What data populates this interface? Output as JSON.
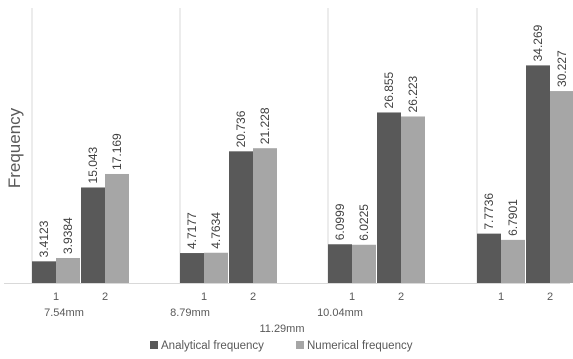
{
  "chart_data": {
    "type": "bar",
    "title": "",
    "xlabel": "",
    "ylabel": "Frequency",
    "ylim": [
      0,
      40
    ],
    "grid": "vertical separator lines only",
    "legend_position": "bottom",
    "groups": [
      {
        "label": "7.54mm",
        "categories": [
          "1",
          "2"
        ]
      },
      {
        "label": "8.79mm",
        "categories": [
          "1",
          "2"
        ]
      },
      {
        "label": "10.04mm",
        "categories": [
          "1",
          "2"
        ]
      },
      {
        "label": "11.29mm",
        "categories": [
          "1",
          "2"
        ]
      }
    ],
    "series": [
      {
        "name": "Analytical frequency",
        "color": "#595959",
        "values": [
          3.4123,
          15.043,
          4.7177,
          20.736,
          6.0999,
          26.855,
          7.7736,
          34.269
        ]
      },
      {
        "name": "Numerical frequency",
        "color": "#a6a6a6",
        "values": [
          3.9384,
          17.169,
          4.7634,
          21.228,
          6.0225,
          26.223,
          6.7901,
          30.227
        ]
      }
    ],
    "data_labels": [
      [
        "3.4123",
        "15.043",
        "4.7177",
        "20.736",
        "6.0999",
        "26.855",
        "7.7736",
        "34.269"
      ],
      [
        "3.9384",
        "17.169",
        "4.7634",
        "21.228",
        "6.0225",
        "26.223",
        "6.7901",
        "30.227"
      ]
    ]
  }
}
